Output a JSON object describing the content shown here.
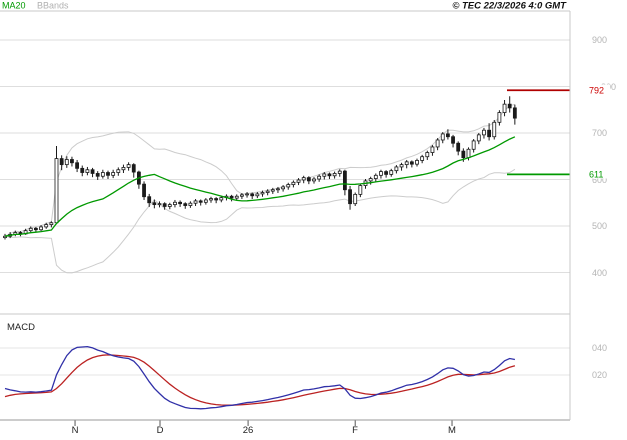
{
  "header": {
    "legend_ma20": "MA20",
    "legend_bbands": "BBands",
    "copyright": "© TEC 22/3/2026 4:0 GMT"
  },
  "macd_panel": {
    "label": "MACD"
  },
  "chart_data": {
    "type": "candlestick",
    "title": "",
    "price_axis": {
      "tick_values": [
        900,
        800,
        700,
        600,
        500,
        400
      ],
      "tick_labels": [
        "900",
        "800",
        "700",
        "600",
        "500",
        "400"
      ],
      "ylim": [
        310,
        960
      ]
    },
    "macd_axis": {
      "tick_values": [
        40,
        20
      ],
      "tick_labels": [
        "040",
        "020"
      ],
      "ylim": [
        -13,
        64
      ]
    },
    "time_axis": {
      "tick_labels": [
        "N",
        "D",
        "26",
        "F",
        "M"
      ],
      "tick_bar_index": [
        13.6,
        30.1,
        47.2,
        68,
        86.8
      ]
    },
    "levels": {
      "resistance": {
        "value": 792,
        "label": "792",
        "color": "#b00000"
      },
      "support": {
        "value": 611,
        "label": "611",
        "color": "#009900"
      }
    },
    "indicators": {
      "ma20": {
        "period": 20,
        "color": "#009900"
      },
      "bbands": {
        "period": 20,
        "mult": 2,
        "color": "#cccccc"
      },
      "macd": {
        "fast": 12,
        "slow": 26,
        "signal": 9,
        "macd_color": "#3030a8",
        "signal_color": "#bb2222"
      },
      "candle_color": "#1a1a1a"
    },
    "candles": [
      [
        475,
        483,
        471,
        478
      ],
      [
        478,
        487,
        474,
        482
      ],
      [
        482,
        490,
        478,
        486
      ],
      [
        486,
        489,
        478,
        483
      ],
      [
        483,
        494,
        481,
        490
      ],
      [
        490,
        499,
        486,
        495
      ],
      [
        495,
        498,
        487,
        492
      ],
      [
        492,
        502,
        489,
        498
      ],
      [
        498,
        507,
        494,
        503
      ],
      [
        503,
        510,
        497,
        507
      ],
      [
        507,
        672,
        504,
        645
      ],
      [
        645,
        652,
        620,
        632
      ],
      [
        632,
        650,
        625,
        643
      ],
      [
        643,
        649,
        628,
        636
      ],
      [
        636,
        642,
        616,
        624
      ],
      [
        624,
        630,
        607,
        615
      ],
      [
        615,
        627,
        609,
        621
      ],
      [
        621,
        625,
        605,
        613
      ],
      [
        613,
        618,
        599,
        607
      ],
      [
        607,
        621,
        602,
        615
      ],
      [
        615,
        619,
        601,
        609
      ],
      [
        609,
        621,
        603,
        615
      ],
      [
        615,
        626,
        608,
        621
      ],
      [
        621,
        632,
        614,
        626
      ],
      [
        626,
        637,
        619,
        632
      ],
      [
        632,
        635,
        604,
        616
      ],
      [
        616,
        619,
        580,
        590
      ],
      [
        590,
        596,
        556,
        563
      ],
      [
        563,
        569,
        541,
        550
      ],
      [
        550,
        557,
        538,
        546
      ],
      [
        546,
        553,
        540,
        548
      ],
      [
        548,
        551,
        535,
        542
      ],
      [
        542,
        550,
        536,
        546
      ],
      [
        546,
        556,
        540,
        551
      ],
      [
        551,
        555,
        541,
        548
      ],
      [
        548,
        551,
        537,
        544
      ],
      [
        544,
        553,
        539,
        549
      ],
      [
        549,
        558,
        543,
        554
      ],
      [
        554,
        557,
        544,
        551
      ],
      [
        551,
        560,
        546,
        556
      ],
      [
        556,
        563,
        550,
        559
      ],
      [
        559,
        562,
        549,
        556
      ],
      [
        556,
        565,
        551,
        561
      ],
      [
        561,
        568,
        555,
        564
      ],
      [
        564,
        567,
        553,
        560
      ],
      [
        560,
        568,
        555,
        564
      ],
      [
        564,
        571,
        558,
        567
      ],
      [
        567,
        573,
        561,
        569
      ],
      [
        569,
        572,
        558,
        565
      ],
      [
        565,
        573,
        560,
        569
      ],
      [
        569,
        576,
        563,
        572
      ],
      [
        572,
        579,
        566,
        575
      ],
      [
        575,
        582,
        569,
        578
      ],
      [
        578,
        584,
        571,
        580
      ],
      [
        580,
        588,
        574,
        584
      ],
      [
        584,
        593,
        578,
        589
      ],
      [
        589,
        598,
        583,
        594
      ],
      [
        594,
        603,
        588,
        599
      ],
      [
        599,
        608,
        592,
        604
      ],
      [
        604,
        607,
        590,
        597
      ],
      [
        597,
        605,
        591,
        601
      ],
      [
        601,
        611,
        595,
        607
      ],
      [
        607,
        616,
        600,
        612
      ],
      [
        612,
        615,
        601,
        608
      ],
      [
        608,
        617,
        602,
        613
      ],
      [
        613,
        622,
        606,
        618
      ],
      [
        618,
        621,
        566,
        578
      ],
      [
        578,
        586,
        535,
        548
      ],
      [
        548,
        572,
        543,
        568
      ],
      [
        568,
        591,
        562,
        587
      ],
      [
        587,
        601,
        580,
        597
      ],
      [
        597,
        606,
        589,
        602
      ],
      [
        602,
        613,
        595,
        609
      ],
      [
        609,
        621,
        602,
        617
      ],
      [
        617,
        620,
        604,
        611
      ],
      [
        611,
        623,
        606,
        619
      ],
      [
        619,
        631,
        613,
        627
      ],
      [
        627,
        636,
        619,
        632
      ],
      [
        632,
        642,
        624,
        638
      ],
      [
        638,
        641,
        626,
        633
      ],
      [
        633,
        645,
        628,
        641
      ],
      [
        641,
        653,
        635,
        649
      ],
      [
        649,
        662,
        642,
        658
      ],
      [
        658,
        674,
        651,
        670
      ],
      [
        670,
        689,
        663,
        685
      ],
      [
        685,
        702,
        678,
        698
      ],
      [
        698,
        708,
        686,
        692
      ],
      [
        692,
        696,
        669,
        678
      ],
      [
        678,
        682,
        652,
        661
      ],
      [
        661,
        667,
        638,
        647
      ],
      [
        647,
        669,
        641,
        665
      ],
      [
        665,
        687,
        658,
        683
      ],
      [
        683,
        700,
        676,
        696
      ],
      [
        696,
        711,
        688,
        706
      ],
      [
        706,
        721,
        684,
        692
      ],
      [
        692,
        728,
        686,
        723
      ],
      [
        723,
        749,
        716,
        744
      ],
      [
        744,
        771,
        736,
        762
      ],
      [
        762,
        779,
        744,
        754
      ],
      [
        754,
        761,
        718,
        732
      ]
    ]
  }
}
